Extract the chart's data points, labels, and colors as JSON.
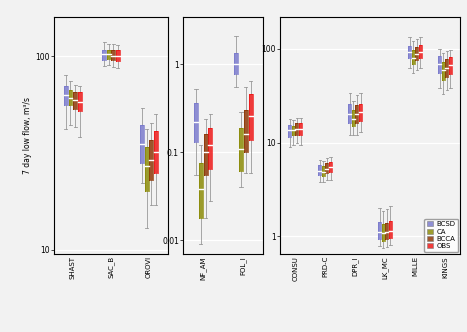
{
  "colors": {
    "BCSD": "#7777CC",
    "CA": "#888800",
    "BCCA": "#8B3300",
    "OBS": "#EE1111"
  },
  "panel1": {
    "sites": [
      "SHAST",
      "SAC_B",
      "OROVI"
    ],
    "ylim": [
      9.5,
      160
    ],
    "yticks": [
      10,
      100
    ],
    "data": {
      "SHAST": {
        "BCSD": {
          "whislo": 42,
          "q1": 56,
          "med": 63,
          "q3": 70,
          "whishi": 80
        },
        "CA": {
          "whislo": 44,
          "q1": 56,
          "med": 61,
          "q3": 67,
          "whishi": 74
        },
        "BCCA": {
          "whislo": 43,
          "q1": 53,
          "med": 59,
          "q3": 65,
          "whishi": 71
        },
        "OBS": {
          "whislo": 38,
          "q1": 52,
          "med": 58,
          "q3": 65,
          "whishi": 70
        }
      },
      "SAC_B": {
        "BCSD": {
          "whislo": 89,
          "q1": 96,
          "med": 102,
          "q3": 108,
          "whishi": 118
        },
        "CA": {
          "whislo": 90,
          "q1": 97,
          "med": 102,
          "q3": 108,
          "whishi": 116
        },
        "BCCA": {
          "whislo": 88,
          "q1": 95,
          "med": 100,
          "q3": 107,
          "whishi": 115
        },
        "OBS": {
          "whislo": 87,
          "q1": 94,
          "med": 100,
          "q3": 107,
          "whishi": 114
        }
      },
      "OROVI": {
        "BCSD": {
          "whislo": 22,
          "q1": 28,
          "med": 35,
          "q3": 44,
          "whishi": 54
        },
        "CA": {
          "whislo": 13,
          "q1": 20,
          "med": 27,
          "q3": 34,
          "whishi": 42
        },
        "BCCA": {
          "whislo": 17,
          "q1": 23,
          "med": 29,
          "q3": 37,
          "whishi": 45
        },
        "OBS": {
          "whislo": 17,
          "q1": 25,
          "med": 32,
          "q3": 41,
          "whishi": 50
        }
      }
    }
  },
  "panel2": {
    "sites": [
      "NF_AM",
      "FOL_I"
    ],
    "ylim": [
      0.007,
      3.5
    ],
    "yticks": [
      0.01,
      0.1,
      1
    ],
    "data": {
      "NF_AM": {
        "BCSD": {
          "whislo": 0.055,
          "q1": 0.13,
          "med": 0.22,
          "q3": 0.36,
          "whishi": 0.52
        },
        "CA": {
          "whislo": 0.009,
          "q1": 0.018,
          "med": 0.038,
          "q3": 0.075,
          "whishi": 0.12
        },
        "BCCA": {
          "whislo": 0.018,
          "q1": 0.055,
          "med": 0.1,
          "q3": 0.16,
          "whishi": 0.24
        },
        "OBS": {
          "whislo": 0.028,
          "q1": 0.065,
          "med": 0.12,
          "q3": 0.19,
          "whishi": 0.27
        }
      },
      "FOL_I": {
        "BCSD": {
          "whislo": 0.55,
          "q1": 0.78,
          "med": 1.0,
          "q3": 1.35,
          "whishi": 2.1
        },
        "CA": {
          "whislo": 0.04,
          "q1": 0.062,
          "med": 0.11,
          "q3": 0.19,
          "whishi": 0.29
        },
        "BCCA": {
          "whislo": 0.058,
          "q1": 0.1,
          "med": 0.16,
          "q3": 0.3,
          "whishi": 0.55
        },
        "OBS": {
          "whislo": 0.058,
          "q1": 0.14,
          "med": 0.26,
          "q3": 0.46,
          "whishi": 0.65
        }
      }
    }
  },
  "panel3": {
    "sites": [
      "CONSU",
      "PRD-C",
      "DPR_I",
      "LK_MC",
      "MILLE",
      "KINGS"
    ],
    "ylim": [
      0.65,
      220
    ],
    "yticks": [
      1,
      10,
      100
    ],
    "data": {
      "CONSU": {
        "BCSD": {
          "whislo": 9.0,
          "q1": 11.5,
          "med": 13.5,
          "q3": 15.5,
          "whishi": 18.0
        },
        "CA": {
          "whislo": 9.5,
          "q1": 12.0,
          "med": 13.5,
          "q3": 15.0,
          "whishi": 17.5
        },
        "BCCA": {
          "whislo": 10.0,
          "q1": 12.0,
          "med": 14.0,
          "q3": 16.0,
          "whishi": 18.5
        },
        "OBS": {
          "whislo": 9.5,
          "q1": 12.0,
          "med": 14.0,
          "q3": 16.0,
          "whishi": 18.5
        }
      },
      "PRD-C": {
        "BCSD": {
          "whislo": 3.8,
          "q1": 4.5,
          "med": 5.0,
          "q3": 5.8,
          "whishi": 6.5
        },
        "CA": {
          "whislo": 3.8,
          "q1": 4.4,
          "med": 4.9,
          "q3": 5.6,
          "whishi": 6.3
        },
        "BCCA": {
          "whislo": 4.0,
          "q1": 4.7,
          "med": 5.2,
          "q3": 6.0,
          "whishi": 6.8
        },
        "OBS": {
          "whislo": 4.0,
          "q1": 4.8,
          "med": 5.5,
          "q3": 6.2,
          "whishi": 7.0
        }
      },
      "DPR_I": {
        "BCSD": {
          "whislo": 12.0,
          "q1": 16.0,
          "med": 20.0,
          "q3": 26.0,
          "whishi": 34.0
        },
        "CA": {
          "whislo": 12.0,
          "q1": 15.0,
          "med": 18.0,
          "q3": 22.0,
          "whishi": 28.0
        },
        "BCCA": {
          "whislo": 12.0,
          "q1": 16.0,
          "med": 20.0,
          "q3": 25.0,
          "whishi": 32.0
        },
        "OBS": {
          "whislo": 13.0,
          "q1": 17.0,
          "med": 21.0,
          "q3": 26.0,
          "whishi": 34.0
        }
      },
      "LK_MC": {
        "BCSD": {
          "whislo": 0.8,
          "q1": 0.95,
          "med": 1.12,
          "q3": 1.42,
          "whishi": 2.0
        },
        "CA": {
          "whislo": 0.76,
          "q1": 0.9,
          "med": 1.08,
          "q3": 1.35,
          "whishi": 1.85
        },
        "BCCA": {
          "whislo": 0.78,
          "q1": 0.93,
          "med": 1.12,
          "q3": 1.4,
          "whishi": 1.95
        },
        "OBS": {
          "whislo": 0.82,
          "q1": 0.97,
          "med": 1.15,
          "q3": 1.45,
          "whishi": 2.1
        }
      },
      "MILLE": {
        "BCSD": {
          "whislo": 62,
          "q1": 80,
          "med": 92,
          "q3": 108,
          "whishi": 135
        },
        "CA": {
          "whislo": 55,
          "q1": 68,
          "med": 80,
          "q3": 96,
          "whishi": 122
        },
        "BCCA": {
          "whislo": 60,
          "q1": 76,
          "med": 88,
          "q3": 104,
          "whishi": 128
        },
        "OBS": {
          "whislo": 62,
          "q1": 80,
          "med": 93,
          "q3": 110,
          "whishi": 134
        }
      },
      "KINGS": {
        "BCSD": {
          "whislo": 38,
          "q1": 55,
          "med": 68,
          "q3": 83,
          "whishi": 100
        },
        "CA": {
          "whislo": 33,
          "q1": 46,
          "med": 59,
          "q3": 73,
          "whishi": 90
        },
        "BCCA": {
          "whislo": 36,
          "q1": 50,
          "med": 63,
          "q3": 78,
          "whishi": 95
        },
        "OBS": {
          "whislo": 38,
          "q1": 54,
          "med": 67,
          "q3": 82,
          "whishi": 98
        }
      }
    }
  },
  "legend_labels": [
    "BCSD",
    "CA",
    "BCCA",
    "OBS"
  ],
  "ylabel": "7 day low flow, m³/s",
  "bg_color": "#F2F2F2",
  "plot_bg": "#F2F2F2"
}
